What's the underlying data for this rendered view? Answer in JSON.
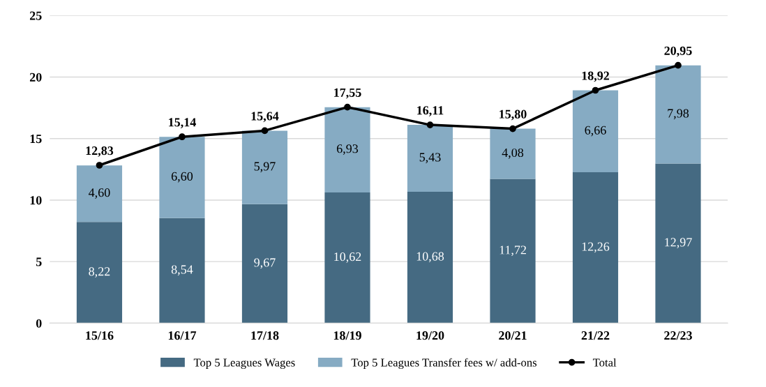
{
  "chart_data": {
    "type": "bar",
    "stacked": true,
    "categories": [
      "15/16",
      "16/17",
      "17/18",
      "18/19",
      "19/20",
      "20/21",
      "21/22",
      "22/23"
    ],
    "series": [
      {
        "name": "Top 5 Leagues Wages",
        "color": "#456a82",
        "values": [
          8.22,
          8.54,
          9.67,
          10.62,
          10.68,
          11.72,
          12.26,
          12.97
        ],
        "value_labels": [
          "8,22",
          "8,54",
          "9,67",
          "10,62",
          "10,68",
          "11,72",
          "12,26",
          "12,97"
        ]
      },
      {
        "name": "Top 5 Leagues Transfer fees w/ add-ons",
        "color": "#86abc3",
        "values": [
          4.6,
          6.6,
          5.97,
          6.93,
          5.43,
          4.08,
          6.66,
          7.98
        ],
        "value_labels": [
          "4,60",
          "6,60",
          "5,97",
          "6,93",
          "5,43",
          "4,08",
          "6,66",
          "7,98"
        ]
      },
      {
        "name": "Total",
        "type": "line",
        "color": "#000000",
        "marker": "circle",
        "line_style": "solid",
        "values": [
          12.83,
          15.14,
          15.64,
          17.55,
          16.11,
          15.8,
          18.92,
          20.95
        ],
        "value_labels": [
          "12,83",
          "15,14",
          "15,64",
          "17,55",
          "16,11",
          "15,80",
          "18,92",
          "20,95"
        ]
      }
    ],
    "ylim": [
      0,
      25
    ],
    "yticks": [
      0,
      5,
      10,
      15,
      20,
      25
    ],
    "grid": "y",
    "legend": "bottom"
  }
}
